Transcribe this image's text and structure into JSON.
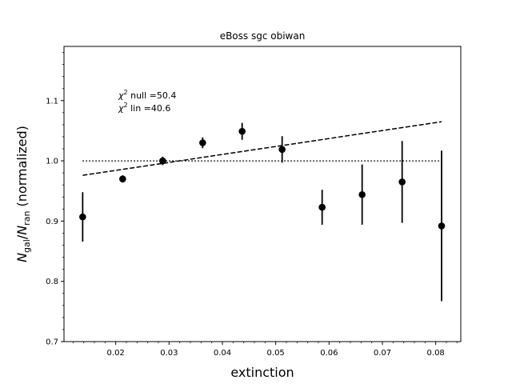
{
  "chart_data": {
    "type": "scatter",
    "title": "eBoss sgc obiwan",
    "xlabel": "extinction",
    "ylabel": {
      "main": "N",
      "sub1": "gal",
      "slash": "/",
      "main2": "N",
      "sub2": "ran",
      "rest": " (normalized)"
    },
    "xlim": [
      0.0103,
      0.0847
    ],
    "ylim": [
      0.7,
      1.19
    ],
    "x_ticks": [
      0.02,
      0.03,
      0.04,
      0.05,
      0.06,
      0.07,
      0.08
    ],
    "x_tick_labels": [
      "0.02",
      "0.03",
      "0.04",
      "0.05",
      "0.06",
      "0.07",
      "0.08"
    ],
    "y_ticks": [
      0.7,
      0.8,
      0.9,
      1.0,
      1.1
    ],
    "y_tick_labels": [
      "0.7",
      "0.8",
      "0.9",
      "1.0",
      "1.1"
    ],
    "points": [
      {
        "x": 0.0138,
        "y": 0.907,
        "yerr": 0.041
      },
      {
        "x": 0.0213,
        "y": 0.97,
        "yerr": 0.006
      },
      {
        "x": 0.0288,
        "y": 1.0,
        "yerr": 0.007
      },
      {
        "x": 0.0363,
        "y": 1.03,
        "yerr": 0.009
      },
      {
        "x": 0.0437,
        "y": 1.049,
        "yerr": 0.014
      },
      {
        "x": 0.0512,
        "y": 1.019,
        "yerr": 0.022
      },
      {
        "x": 0.0587,
        "y": 0.923,
        "yerr": 0.029
      },
      {
        "x": 0.0662,
        "y": 0.944,
        "yerr": 0.05
      },
      {
        "x": 0.0737,
        "y": 0.965,
        "yerr": 0.068
      },
      {
        "x": 0.0811,
        "y": 0.892,
        "yerr": 0.125
      }
    ],
    "null_line": {
      "x": [
        0.0138,
        0.0811
      ],
      "y": [
        1.0,
        1.0
      ],
      "style": "dotted"
    },
    "lin_fit": {
      "x": [
        0.0138,
        0.0811
      ],
      "y": [
        0.976,
        1.065
      ],
      "style": "dashed"
    },
    "annotations": {
      "chi2_null": {
        "prefix": "χ",
        "sup": "2",
        "text": " null =50.4"
      },
      "chi2_lin": {
        "prefix": "χ",
        "sup": "2",
        "text": " lin =40.6"
      }
    },
    "grid": false,
    "colors": {
      "points": "#000000",
      "lines": "#000000"
    }
  }
}
